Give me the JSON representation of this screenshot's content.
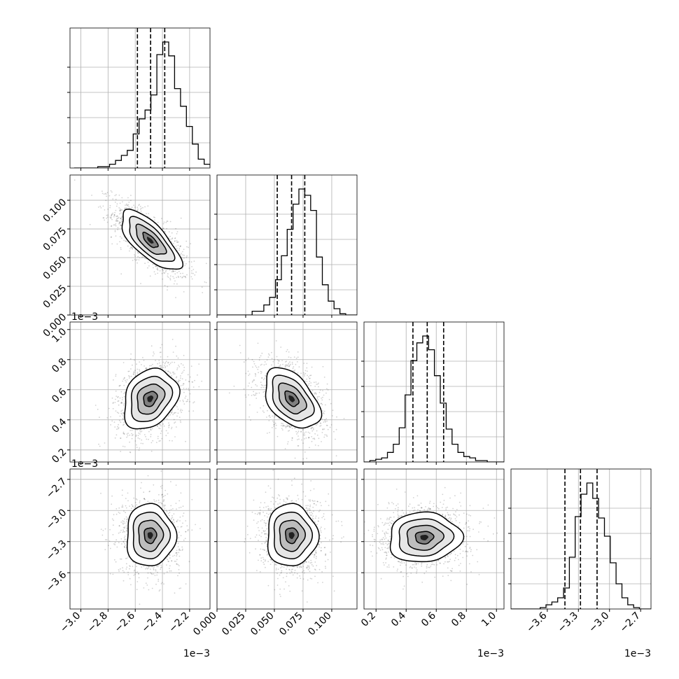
{
  "chart_data": {
    "type": "corner",
    "parameters": [
      {
        "id": "p1",
        "range": [
          -3.08,
          -2.05
        ],
        "ticks": [
          "-3.0",
          "-2.8",
          "-2.6",
          "-2.4",
          "-2.2"
        ],
        "tick_values": [
          -3.0,
          -2.8,
          -2.6,
          -2.4,
          -2.2
        ],
        "offset_label": "1e−3",
        "quantiles": [
          -2.584,
          -2.487,
          -2.383
        ],
        "histogram": {
          "x_start": -3.05,
          "bin_width": 0.0435,
          "counts": [
            0,
            0,
            0,
            0,
            0.01,
            0.01,
            0.03,
            0.06,
            0.1,
            0.14,
            0.27,
            0.39,
            0.46,
            0.58,
            0.9,
            1.0,
            0.89,
            0.63,
            0.49,
            0.33,
            0.19,
            0.07,
            0.03,
            0.01
          ]
        }
      },
      {
        "id": "p2",
        "range": [
          0.0,
          0.122
        ],
        "ticks": [
          "0.000",
          "0.025",
          "0.050",
          "0.075",
          "0.100"
        ],
        "tick_values": [
          0.0,
          0.025,
          0.05,
          0.075,
          0.1
        ],
        "offset_label": "",
        "quantiles": [
          0.0525,
          0.065,
          0.0765
        ],
        "histogram": {
          "x_start": 0.0,
          "bin_width": 0.0051,
          "counts": [
            0,
            0,
            0,
            0,
            0,
            0,
            0.03,
            0.03,
            0.08,
            0.14,
            0.28,
            0.47,
            0.68,
            0.88,
            1.0,
            0.95,
            0.83,
            0.46,
            0.24,
            0.11,
            0.05,
            0.01,
            0,
            0
          ]
        }
      },
      {
        "id": "p3",
        "range": [
          0.12,
          1.05
        ],
        "ticks": [
          "0.2",
          "0.4",
          "0.6",
          "0.8",
          "1.0"
        ],
        "tick_values": [
          0.2,
          0.4,
          0.6,
          0.8,
          1.0
        ],
        "offset_label": "1e−3",
        "quantiles": [
          0.445,
          0.54,
          0.649
        ],
        "histogram": {
          "x_start": 0.12,
          "bin_width": 0.039,
          "counts": [
            0,
            0.01,
            0.02,
            0.03,
            0.07,
            0.13,
            0.25,
            0.49,
            0.74,
            0.87,
            0.92,
            0.82,
            0.63,
            0.43,
            0.24,
            0.13,
            0.07,
            0.04,
            0.03,
            0.01,
            0.01,
            0,
            0,
            0
          ]
        }
      },
      {
        "id": "p4",
        "range": [
          -3.95,
          -2.6
        ],
        "ticks": [
          "-3.6",
          "-3.3",
          "-3.0",
          "-2.7"
        ],
        "tick_values": [
          -3.6,
          -3.3,
          -3.0,
          -2.7
        ],
        "offset_label": "1e−3",
        "quantiles": [
          -3.43,
          -3.28,
          -3.12
        ],
        "histogram": {
          "x_start": -3.95,
          "bin_width": 0.0563,
          "counts": [
            0,
            0,
            0,
            0,
            0,
            0.01,
            0.03,
            0.05,
            0.08,
            0.15,
            0.37,
            0.66,
            0.82,
            0.9,
            0.79,
            0.65,
            0.52,
            0.33,
            0.18,
            0.08,
            0.03,
            0.01,
            0,
            0
          ]
        }
      }
    ],
    "pairs": [
      {
        "x": "p1",
        "y": "p2",
        "mean": [
          -2.49,
          0.065
        ],
        "sd": [
          0.11,
          0.013
        ],
        "corr": -0.72
      },
      {
        "x": "p1",
        "y": "p3",
        "mean": [
          -2.49,
          0.54
        ],
        "sd": [
          0.1,
          0.1
        ],
        "corr": 0.25
      },
      {
        "x": "p2",
        "y": "p3",
        "mean": [
          0.065,
          0.54
        ],
        "sd": [
          0.012,
          0.1
        ],
        "corr": -0.45
      },
      {
        "x": "p1",
        "y": "p4",
        "mean": [
          -2.49,
          -3.24
        ],
        "sd": [
          0.09,
          0.15
        ],
        "corr": 0.0
      },
      {
        "x": "p2",
        "y": "p4",
        "mean": [
          0.065,
          -3.24
        ],
        "sd": [
          0.011,
          0.15
        ],
        "corr": 0.0
      },
      {
        "x": "p3",
        "y": "p4",
        "mean": [
          0.52,
          -3.26
        ],
        "sd": [
          0.12,
          0.12
        ],
        "corr": 0.05
      }
    ],
    "contour_levels_sigma": [
      0.5,
      1.0,
      1.5,
      2.0
    ],
    "quantile_line_style": "dashed",
    "grid": true,
    "colors": {
      "line": "#000000",
      "points": "#000000",
      "grid": "#b0b0b0"
    }
  }
}
